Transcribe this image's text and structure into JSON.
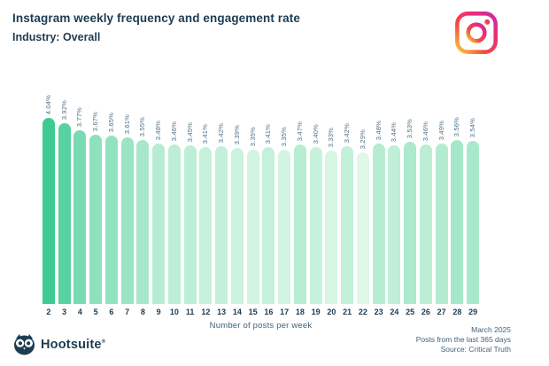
{
  "header": {
    "title": "Instagram weekly frequency and engagement rate",
    "subtitle": "Industry: Overall",
    "icon": "instagram-logo"
  },
  "chart_data": {
    "type": "bar",
    "title": "Instagram weekly frequency and engagement rate",
    "subtitle": "Industry: Overall",
    "xlabel": "Number of posts per week",
    "ylabel": "",
    "unit": "%",
    "categories": [
      2,
      3,
      4,
      5,
      6,
      7,
      8,
      9,
      10,
      11,
      12,
      13,
      14,
      15,
      16,
      17,
      18,
      19,
      20,
      21,
      22,
      23,
      24,
      25,
      26,
      27,
      28,
      29
    ],
    "values": [
      4.04,
      3.92,
      3.77,
      3.67,
      3.65,
      3.61,
      3.55,
      3.48,
      3.46,
      3.45,
      3.41,
      3.42,
      3.39,
      3.35,
      3.41,
      3.35,
      3.47,
      3.4,
      3.33,
      3.42,
      3.29,
      3.48,
      3.44,
      3.53,
      3.46,
      3.49,
      3.56,
      3.54
    ],
    "labels": [
      "4.04%",
      "3.92%",
      "3.77%",
      "3.67%",
      "3.65%",
      "3.61%",
      "3.55%",
      "3.48%",
      "3.46%",
      "3.45%",
      "3.41%",
      "3.42%",
      "3.39%",
      "3.35%",
      "3.41%",
      "3.35%",
      "3.47%",
      "3.40%",
      "3.33%",
      "3.42%",
      "3.29%",
      "3.48%",
      "3.44%",
      "3.53%",
      "3.46%",
      "3.49%",
      "3.56%",
      "3.54%"
    ],
    "ylim": [
      0,
      4.04
    ],
    "grid": false,
    "legend": null,
    "color_scale": {
      "min_color": "#dff8e8",
      "max_color": "#3ecb92"
    }
  },
  "footer": {
    "brand": "Hootsuite",
    "registered": "®",
    "brand_icon": "hootsuite-owl",
    "meta_lines": [
      "March 2025",
      "Posts from the last 365 days",
      "Source: Critical Truth"
    ]
  }
}
